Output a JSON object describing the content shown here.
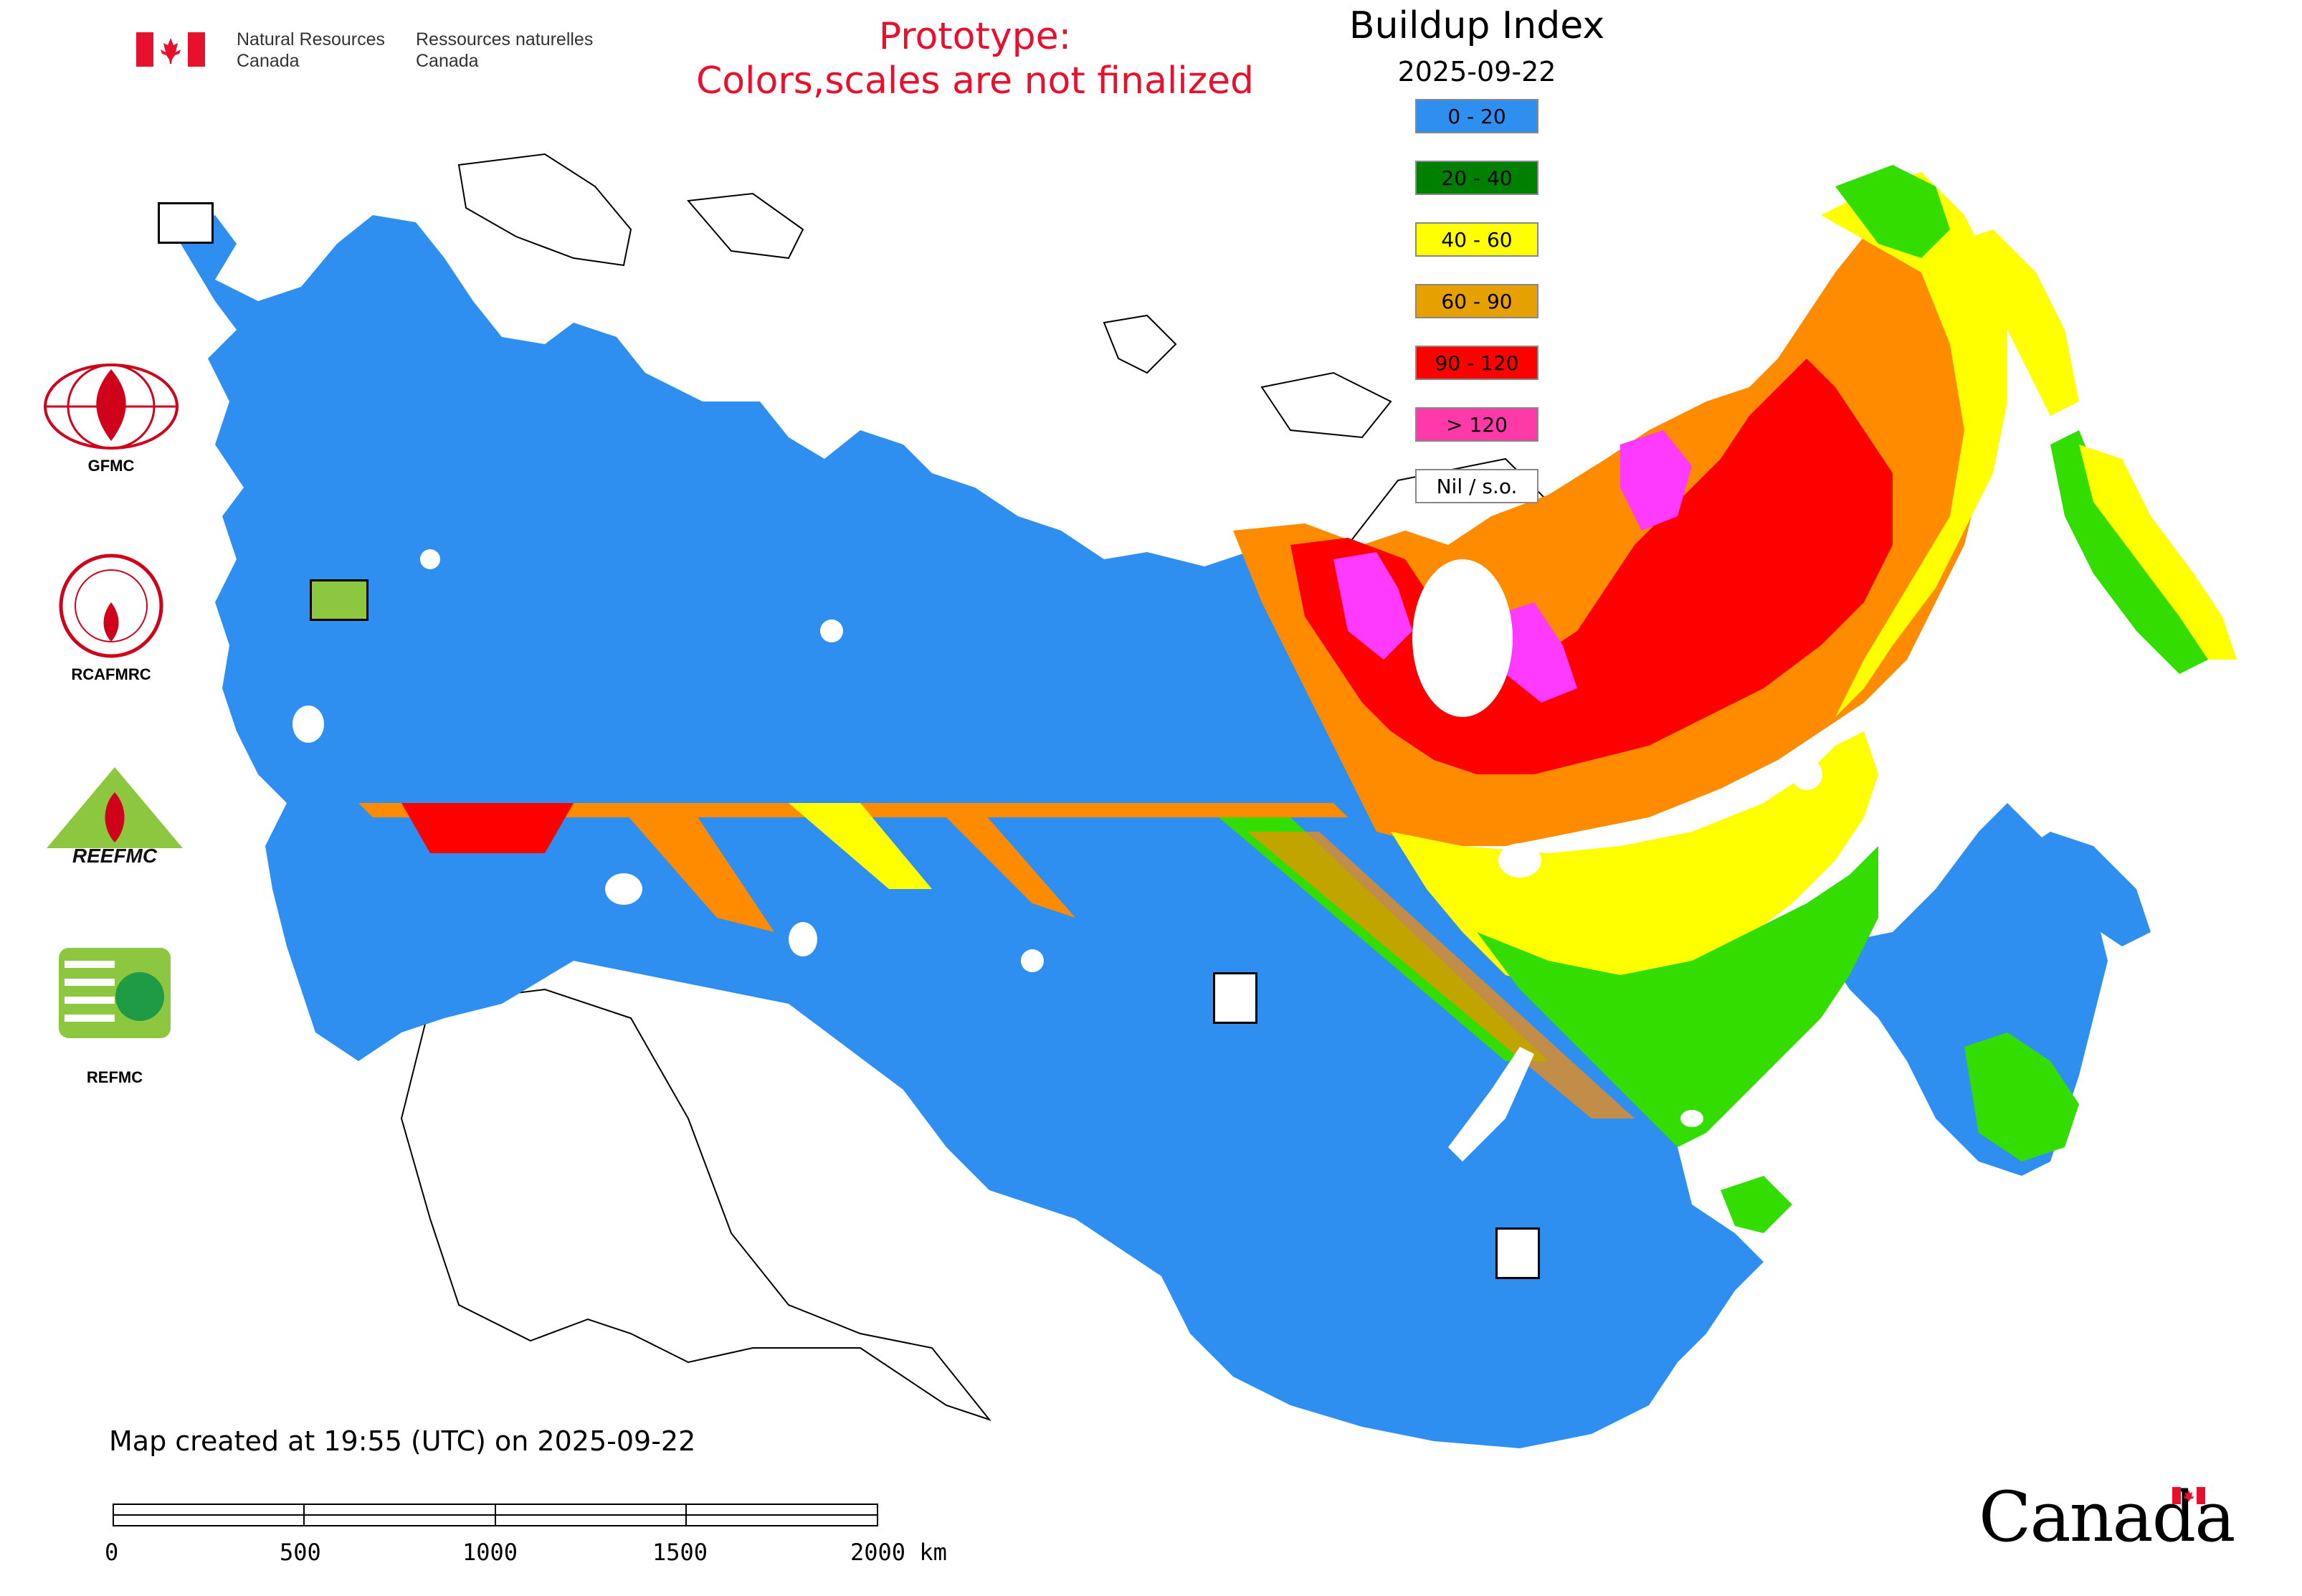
{
  "header": {
    "agency_en_line1": "Natural Resources",
    "agency_en_line2": "Canada",
    "agency_fr_line1": "Ressources naturelles",
    "agency_fr_line2": "Canada",
    "prototype_line1": "Prototype:",
    "prototype_line2": "Colors,scales are not finalized"
  },
  "legend": {
    "title": "Buildup Index",
    "date": "2025-09-22",
    "classes": [
      {
        "label": "0 - 20",
        "color": "#2f8ff0"
      },
      {
        "label": "20 - 40",
        "color": "#008000"
      },
      {
        "label": "40 - 60",
        "color": "#ffff00"
      },
      {
        "label": "60 - 90",
        "color": "#e6a000"
      },
      {
        "label": "90 - 120",
        "color": "#ff0000"
      },
      {
        "label": "> 120",
        "color": "#ff3aa8"
      },
      {
        "label": "Nil / s.o.",
        "color": "#ffffff"
      }
    ]
  },
  "logos": {
    "gfmc": "GFMC",
    "rcafmrc": "RCAFMRC",
    "reefmc": "REEFMC",
    "refmc": "REFMC"
  },
  "footer": {
    "created": "Map created at 19:55 (UTC) on 2025-09-22",
    "scale_ticks": [
      "0",
      "500",
      "1000",
      "1500",
      "2000 km"
    ],
    "wordmark": "Canada"
  },
  "colors": {
    "blue": "#2f8ff0",
    "green": "#33dd00",
    "dark_green": "#008000",
    "yellow": "#ffff00",
    "orange": "#ff8c00",
    "red": "#ff0000",
    "magenta": "#ff3aff",
    "prototype_red": "#e8112d"
  }
}
